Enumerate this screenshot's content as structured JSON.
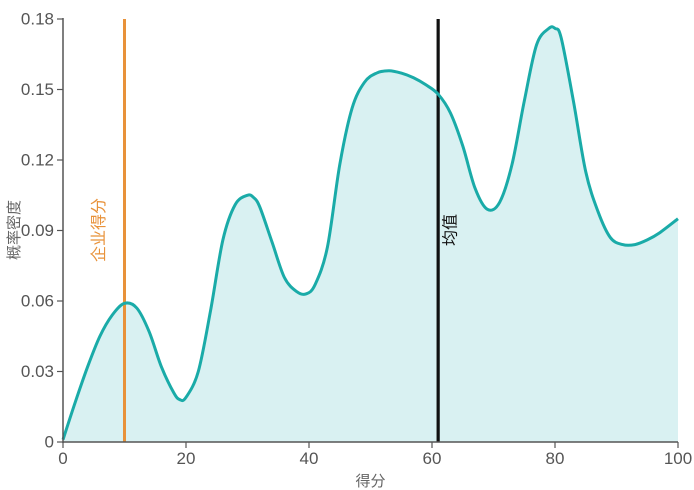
{
  "chart_data": {
    "type": "area",
    "xlabel": "得分",
    "ylabel": "概率密度",
    "xlim": [
      0,
      100
    ],
    "ylim": [
      0,
      0.18
    ],
    "x_ticks": [
      "0",
      "20",
      "40",
      "60",
      "80",
      "100"
    ],
    "y_ticks": [
      "0",
      "0.03",
      "0.06",
      "0.09",
      "0.12",
      "0.15",
      "0.18"
    ],
    "grid": false,
    "colors": {
      "curve": "#1aaba8",
      "fill": "#d9f1f2",
      "company": "#e8923a",
      "mean": "#111111",
      "axis": "#555555"
    },
    "series": [
      {
        "x": [
          0,
          2,
          4,
          6,
          8,
          10,
          12,
          14,
          16,
          18,
          19,
          20,
          22,
          24,
          26,
          28,
          30,
          31,
          32,
          34,
          36,
          38,
          39.5,
          41,
          43,
          45,
          47,
          49,
          51,
          53,
          55,
          57,
          59,
          61,
          63,
          65,
          67,
          69,
          71,
          73,
          75,
          77,
          79,
          80,
          81,
          83,
          85,
          87,
          89,
          91,
          93,
          95,
          97,
          100
        ],
        "y": [
          0.001,
          0.017,
          0.032,
          0.045,
          0.054,
          0.059,
          0.057,
          0.047,
          0.032,
          0.021,
          0.018,
          0.019,
          0.03,
          0.056,
          0.086,
          0.101,
          0.105,
          0.104,
          0.1,
          0.085,
          0.07,
          0.064,
          0.063,
          0.067,
          0.083,
          0.118,
          0.142,
          0.153,
          0.157,
          0.158,
          0.157,
          0.155,
          0.152,
          0.148,
          0.14,
          0.126,
          0.108,
          0.099,
          0.102,
          0.118,
          0.145,
          0.169,
          0.176,
          0.176,
          0.172,
          0.145,
          0.115,
          0.098,
          0.087,
          0.084,
          0.084,
          0.086,
          0.089,
          0.095
        ]
      }
    ],
    "reference_lines": [
      {
        "label": "企业得分",
        "x": 10,
        "color": "#e8923a"
      },
      {
        "label": "均值",
        "x": 61,
        "color": "#111111"
      }
    ]
  }
}
